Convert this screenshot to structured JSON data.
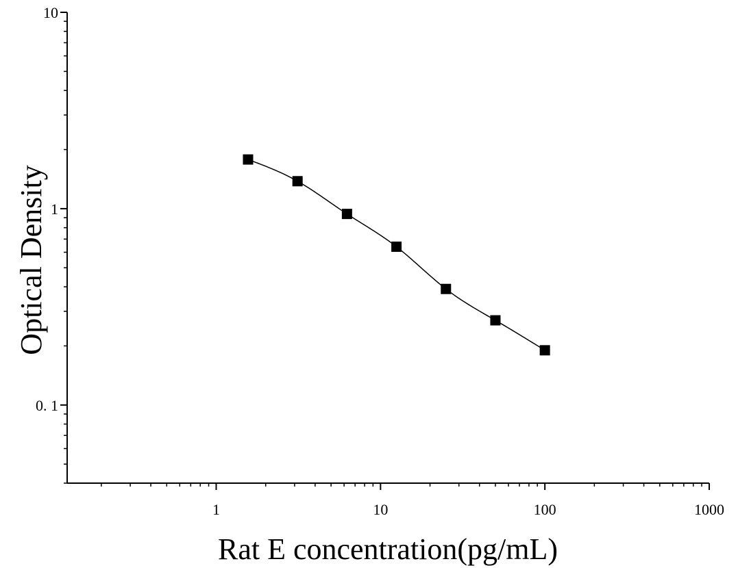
{
  "chart_data": {
    "type": "scatter",
    "title": "",
    "xlabel": "Rat E concentration(pg/mL)",
    "ylabel": "Optical Density",
    "xscale": "log",
    "yscale": "log",
    "xlim": [
      0.12,
      1000
    ],
    "ylim": [
      0.04,
      10
    ],
    "x_tick_labels": [
      {
        "value": 1,
        "label": "1"
      },
      {
        "value": 10,
        "label": "10"
      },
      {
        "value": 100,
        "label": "100"
      },
      {
        "value": 1000,
        "label": "1000"
      }
    ],
    "y_tick_labels": [
      {
        "value": 0.1,
        "label": "0. 1"
      },
      {
        "value": 1,
        "label": "1"
      },
      {
        "value": 10,
        "label": "10"
      }
    ],
    "grid": false,
    "legend": "none",
    "series": [
      {
        "x": [
          1.5625,
          3.125,
          6.25,
          12.5,
          25,
          50,
          100
        ],
        "y": [
          1.78,
          1.38,
          0.94,
          0.64,
          0.39,
          0.27,
          0.19
        ],
        "marker": "square",
        "color": "#000000",
        "fit_curve": true
      }
    ]
  }
}
